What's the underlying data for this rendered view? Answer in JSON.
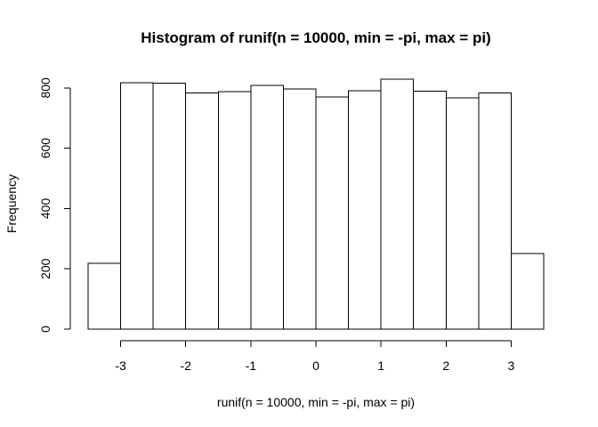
{
  "chart_data": {
    "type": "bar",
    "title": "Histogram of runif(n = 10000, min = -pi, max = pi)",
    "xlabel": "runif(n = 10000, min = -pi, max = pi)",
    "ylabel": "Frequency",
    "bins": [
      {
        "start": -3.5,
        "end": -3.0,
        "count": 218
      },
      {
        "start": -3.0,
        "end": -2.5,
        "count": 817
      },
      {
        "start": -2.5,
        "end": -2.0,
        "count": 815
      },
      {
        "start": -2.0,
        "end": -1.5,
        "count": 783
      },
      {
        "start": -1.5,
        "end": -1.0,
        "count": 787
      },
      {
        "start": -1.0,
        "end": -0.5,
        "count": 808
      },
      {
        "start": -0.5,
        "end": 0.0,
        "count": 796
      },
      {
        "start": 0.0,
        "end": 0.5,
        "count": 770
      },
      {
        "start": 0.5,
        "end": 1.0,
        "count": 791
      },
      {
        "start": 1.0,
        "end": 1.5,
        "count": 829
      },
      {
        "start": 1.5,
        "end": 2.0,
        "count": 789
      },
      {
        "start": 2.0,
        "end": 2.5,
        "count": 767
      },
      {
        "start": 2.5,
        "end": 3.0,
        "count": 783
      },
      {
        "start": 3.0,
        "end": 3.5,
        "count": 251
      }
    ],
    "x_ticks": [
      {
        "value": -3,
        "label": "-3"
      },
      {
        "value": -2,
        "label": "-2"
      },
      {
        "value": -1,
        "label": "-1"
      },
      {
        "value": 0,
        "label": "0"
      },
      {
        "value": 1,
        "label": "1"
      },
      {
        "value": 2,
        "label": "2"
      },
      {
        "value": 3,
        "label": "3"
      }
    ],
    "y_ticks": [
      {
        "value": 0,
        "label": "0"
      },
      {
        "value": 200,
        "label": "200"
      },
      {
        "value": 400,
        "label": "400"
      },
      {
        "value": 600,
        "label": "600"
      },
      {
        "value": 800,
        "label": "800"
      }
    ],
    "xlim": [
      -3.5,
      3.5
    ],
    "ylim": [
      0,
      829
    ],
    "grid": false,
    "bar_fill": "#ffffff",
    "bar_stroke": "#000000"
  }
}
